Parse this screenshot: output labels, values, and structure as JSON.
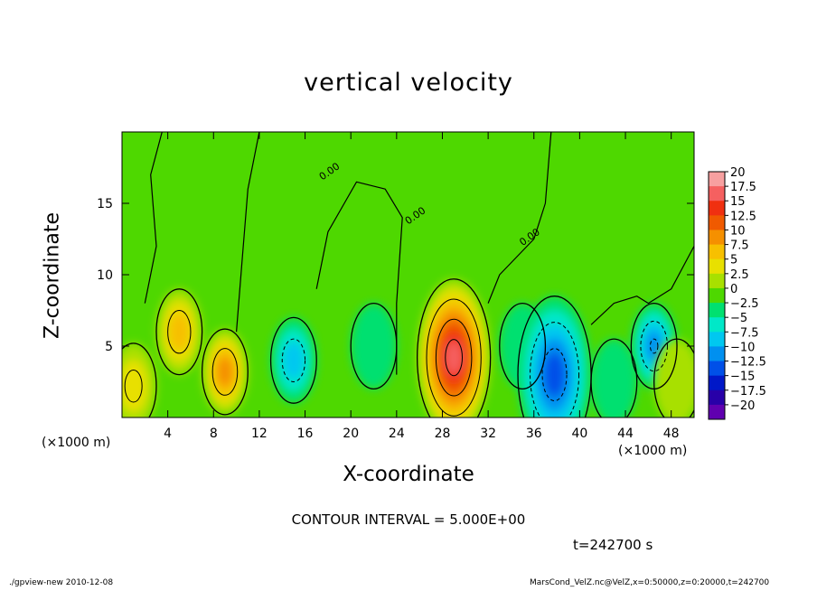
{
  "chart_data": {
    "type": "heatmap",
    "title": "vertical velocity",
    "xlabel": "X-coordinate",
    "ylabel": "Z-coordinate",
    "x_unit": "(×1000 m)",
    "y_unit": "(×1000 m)",
    "xlim": [
      0,
      50
    ],
    "ylim": [
      0,
      20
    ],
    "x_ticks": [
      4,
      8,
      12,
      16,
      20,
      24,
      28,
      32,
      36,
      40,
      44,
      48
    ],
    "y_ticks": [
      5,
      10,
      15
    ],
    "colorbar": {
      "labels": [
        "20",
        "17.5",
        "15",
        "12.5",
        "10",
        "7.5",
        "5",
        "2.5",
        "0",
        "−2.5",
        "−5",
        "−7.5",
        "−10",
        "−12.5",
        "−15",
        "−17.5",
        "−20"
      ],
      "colors": [
        "#f7a0a0",
        "#f56060",
        "#f03010",
        "#f05a00",
        "#f59000",
        "#f7c000",
        "#e8e000",
        "#a8e000",
        "#4ed800",
        "#00e070",
        "#00e8c8",
        "#00c8f0",
        "#0090f0",
        "#0050e8",
        "#0018c8",
        "#2800a8",
        "#6000b0"
      ]
    },
    "contour_interval": "CONTOUR INTERVAL = 5.000E+00",
    "contour_label": "0.00",
    "time": "t=242700 s",
    "features": [
      {
        "x": 29,
        "z": 4.2,
        "peak": 17.5
      },
      {
        "x": 5,
        "z": 6,
        "peak": 8
      },
      {
        "x": 9,
        "z": 3.2,
        "peak": 9
      },
      {
        "x": 1,
        "z": 2.2,
        "peak": 6
      },
      {
        "x": 15,
        "z": 4,
        "peak": -8
      },
      {
        "x": 22,
        "z": 5,
        "peak": -3
      },
      {
        "x": 35,
        "z": 5,
        "peak": -3
      },
      {
        "x": 37.8,
        "z": 3,
        "peak": -13
      },
      {
        "x": 46.5,
        "z": 5,
        "peak": -10
      },
      {
        "x": 43,
        "z": 2.5,
        "peak": -3
      },
      {
        "x": 48.5,
        "z": 2.5,
        "peak": 3
      }
    ]
  },
  "footer": {
    "left": "./gpview-new   2010-12-08",
    "right": "MarsCond_VelZ.nc@VelZ,x=0:50000,z=0:20000,t=242700"
  }
}
